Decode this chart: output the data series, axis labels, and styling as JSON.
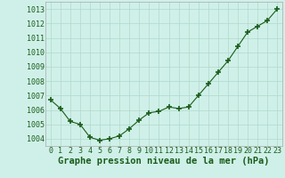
{
  "x": [
    0,
    1,
    2,
    3,
    4,
    5,
    6,
    7,
    8,
    9,
    10,
    11,
    12,
    13,
    14,
    15,
    16,
    17,
    18,
    19,
    20,
    21,
    22,
    23
  ],
  "y": [
    1006.7,
    1006.1,
    1005.2,
    1005.0,
    1004.1,
    1003.9,
    1004.0,
    1004.2,
    1004.7,
    1005.3,
    1005.8,
    1005.9,
    1006.2,
    1006.1,
    1006.2,
    1007.0,
    1007.8,
    1008.6,
    1009.4,
    1010.4,
    1011.4,
    1011.8,
    1012.2,
    1013.0
  ],
  "line_color": "#1a5c1a",
  "marker_color": "#1a5c1a",
  "background_color": "#cff0e8",
  "grid_color": "#b0d8cc",
  "ylabel_values": [
    1004,
    1005,
    1006,
    1007,
    1008,
    1009,
    1010,
    1011,
    1012,
    1013
  ],
  "ylim": [
    1003.5,
    1013.5
  ],
  "xlim": [
    -0.5,
    23.5
  ],
  "xlabel": "Graphe pression niveau de la mer (hPa)",
  "xlabel_fontsize": 7.5,
  "tick_fontsize": 6.0,
  "spine_color": "#aaaaaa"
}
